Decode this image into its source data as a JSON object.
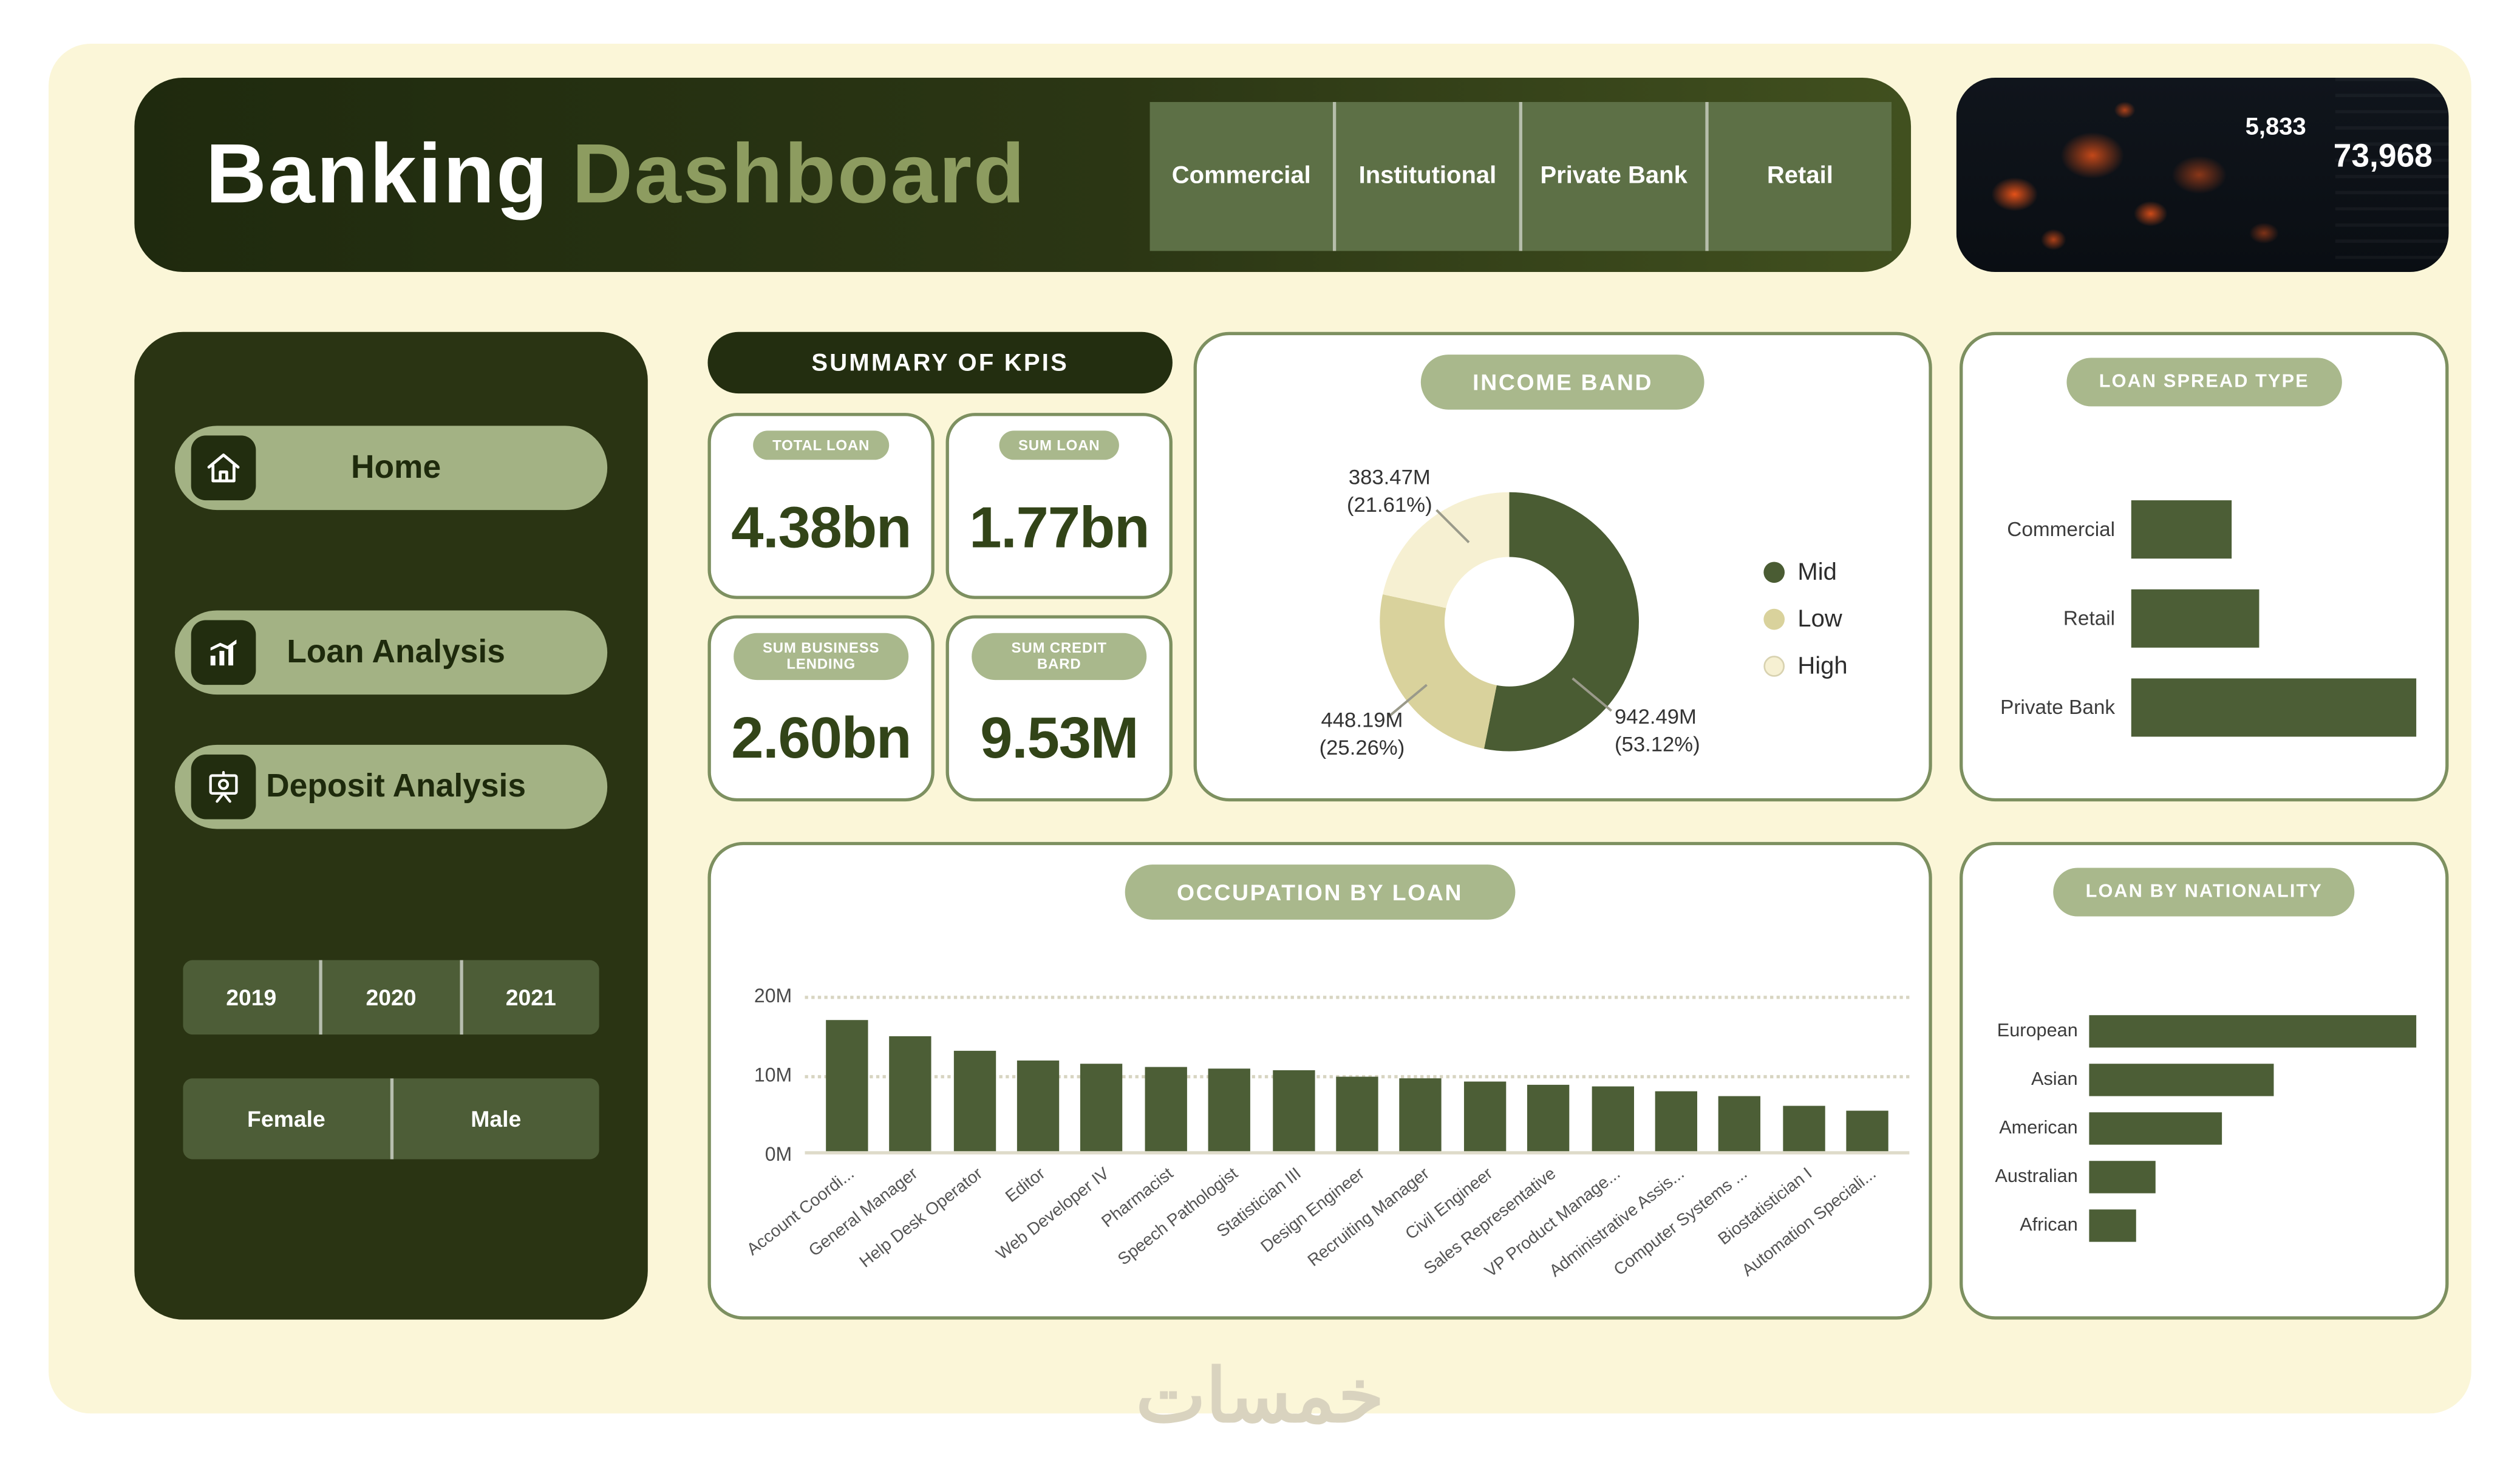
{
  "header": {
    "title_primary": "Banking",
    "title_secondary": "Dashboard",
    "tabs": [
      "Commercial",
      "Institutional",
      "Private Bank",
      "Retail"
    ],
    "stats": [
      {
        "value": "5,833"
      },
      {
        "value": "73,968"
      }
    ]
  },
  "sidebar": {
    "nav": [
      {
        "label": "Home",
        "icon": "home-icon"
      },
      {
        "label": "Loan Analysis",
        "icon": "loan-analysis-icon"
      },
      {
        "label": "Deposit Analysis",
        "icon": "deposit-analysis-icon"
      }
    ],
    "years": [
      "2019",
      "2020",
      "2021"
    ],
    "genders": [
      "Female",
      "Male"
    ]
  },
  "kpis": {
    "title": "SUMMARY OF KPIS",
    "cards": [
      {
        "label": "TOTAL LOAN",
        "value": "4.38bn"
      },
      {
        "label": "SUM LOAN",
        "value": "1.77bn"
      },
      {
        "label": "SUM BUSINESS LENDING",
        "value": "2.60bn"
      },
      {
        "label": "SUM CREDIT BARD",
        "value": "9.53M"
      }
    ]
  },
  "chart_data": [
    {
      "type": "pie",
      "title": "INCOME BAND",
      "labels": [
        "Mid",
        "Low",
        "High"
      ],
      "values_m": [
        942.49,
        448.19,
        383.47
      ],
      "percents": [
        53.12,
        25.26,
        21.61
      ],
      "value_labels": [
        "942.49M (53.12%)",
        "448.19M (25.26%)",
        "383.47M (21.61%)"
      ],
      "colors": [
        "#4a5c33",
        "#d9d29c",
        "#f6f0d2"
      ],
      "donut": true,
      "legend_position": "right"
    },
    {
      "type": "bar",
      "orientation": "horizontal",
      "title": "LOAN SPREAD TYPE",
      "categories": [
        "Commercial",
        "Retail",
        "Private Bank"
      ],
      "values_relative_pct": [
        35,
        45,
        100
      ],
      "bar_color": "#4c5e36",
      "axis_labels_shown": false
    },
    {
      "type": "bar",
      "title": "OCCUPATION BY LOAN",
      "categories": [
        "Account Coordi...",
        "General Manager",
        "Help Desk Operator",
        "Editor",
        "Web Developer IV",
        "Pharmacist",
        "Speech Pathologist",
        "Statistician III",
        "Design Engineer",
        "Recruiting Manager",
        "Civil Engineer",
        "Sales Representative",
        "VP Product Manage...",
        "Administrative Assis...",
        "Computer Systems ...",
        "Biostatistician I",
        "Automation Speciali..."
      ],
      "values_m": [
        17.3,
        15.1,
        13.1,
        12.0,
        11.4,
        11.0,
        10.8,
        10.6,
        9.8,
        9.6,
        9.2,
        8.8,
        8.6,
        7.8,
        7.3,
        5.9,
        5.3
      ],
      "yticks": [
        "20M",
        "10M",
        "0M"
      ],
      "ylim": [
        0,
        20
      ],
      "grid": "dotted horizontal",
      "bar_color": "#4c5e36"
    },
    {
      "type": "bar",
      "orientation": "horizontal",
      "title": "LOAN BY NATIONALITY",
      "categories": [
        "European",
        "Asian",
        "American",
        "Australian",
        "African"
      ],
      "values_relative_pct": [
        99,
        56,
        40,
        20,
        14
      ],
      "bar_color": "#4c5e36",
      "axis_labels_shown": false
    }
  ],
  "watermark": "خمسات"
}
